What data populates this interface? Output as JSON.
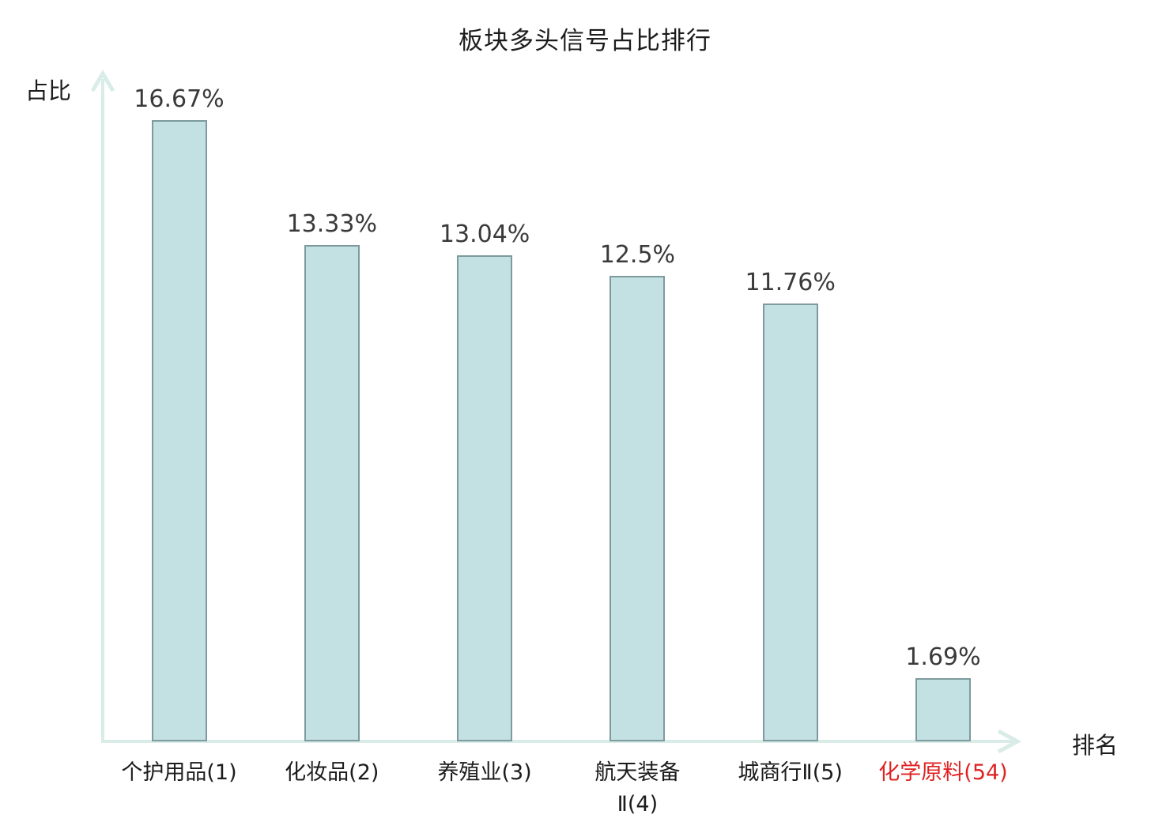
{
  "title": "板块多头信号占比排行",
  "y_axis_label": "占比",
  "x_axis_label": "排名",
  "colors": {
    "bar_fill": "#c3e0e3",
    "bar_border": "#7e9a9e",
    "axis": "#d9ece8",
    "title_text": "#1c1c1c",
    "value_text": "#3a3a3a",
    "highlight_text": "#e02222"
  },
  "chart_data": {
    "type": "bar",
    "title": "板块多头信号占比排行",
    "xlabel": "排名",
    "ylabel": "占比",
    "categories": [
      "个护用品(1)",
      "化妆品(2)",
      "养殖业(3)",
      "航天装备\nⅡ(4)",
      "城商行Ⅱ(5)",
      "化学原料(54)"
    ],
    "values": [
      16.67,
      13.33,
      13.04,
      12.5,
      11.76,
      1.69
    ],
    "value_labels": [
      "16.67%",
      "13.33%",
      "13.04%",
      "12.5%",
      "11.76%",
      "1.69%"
    ],
    "highlighted_category_index": 5,
    "ylim": [
      0,
      18
    ],
    "grid": false,
    "legend": null,
    "axes_style": "arrow-tipped, pale teal, no ticks"
  }
}
